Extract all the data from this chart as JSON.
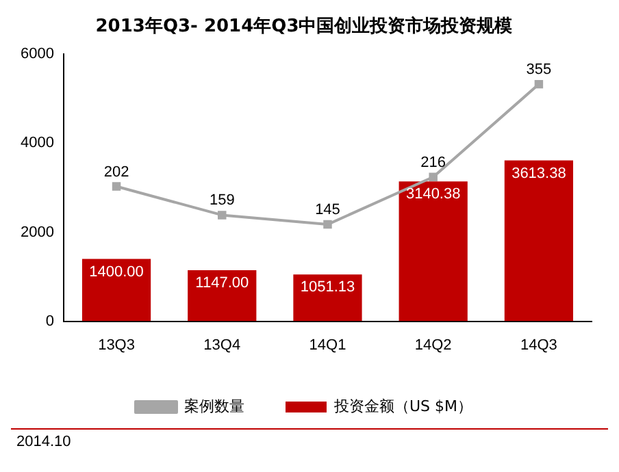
{
  "chart_data": {
    "type": "bar",
    "title": "2013年Q3- 2014年Q3中国创业投资市场投资规模",
    "categories": [
      "13Q3",
      "13Q4",
      "14Q1",
      "14Q2",
      "14Q3"
    ],
    "series": [
      {
        "name": "投资金额（US $M）",
        "color": "#c00000",
        "values": [
          1400.0,
          1147.0,
          1051.13,
          3140.38,
          3613.38
        ],
        "value_labels": [
          "1400.00",
          "1147.00",
          "1051.13",
          "3140.38",
          "3613.38"
        ]
      },
      {
        "name": "案例数量",
        "type": "line",
        "axis": "y2",
        "color": "#a6a6a6",
        "marker": "square",
        "values": [
          202,
          159,
          145,
          216,
          355
        ],
        "value_labels": [
          "202",
          "159",
          "145",
          "216",
          "355"
        ]
      }
    ],
    "ylim": [
      0,
      6000
    ],
    "yticks": [
      0,
      2000,
      4000,
      6000
    ],
    "grid": false,
    "legend": "bottom",
    "tick_labels": "xy",
    "annotations": [
      "2014.10"
    ]
  }
}
